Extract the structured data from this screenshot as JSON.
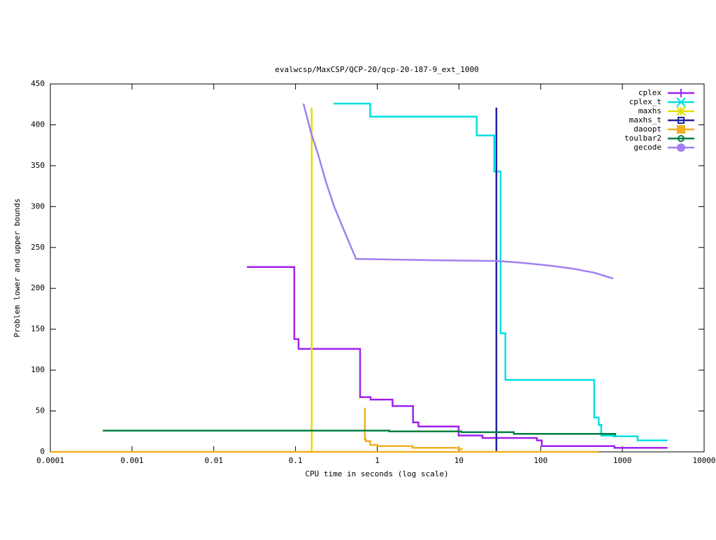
{
  "chart_data": {
    "type": "line",
    "title": "evalwcsp/MaxCSP/QCP-20/qcp-20-187-9_ext_1000",
    "x_label": "CPU time in seconds (log scale)",
    "y_label": "Problem lower and upper bounds",
    "xscale": "log",
    "xlim": [
      0.0001,
      10000
    ],
    "xticks": [
      0.0001,
      0.001,
      0.01,
      0.1,
      1,
      10,
      100,
      1000,
      10000
    ],
    "ylim": [
      0,
      450
    ],
    "yticks": [
      0,
      50,
      100,
      150,
      200,
      250,
      300,
      350,
      400,
      450
    ],
    "legend": "top-right",
    "series": [
      {
        "name": "cplex",
        "color": "#a020f0",
        "marker": "plus",
        "x": [
          0.0254,
          0.0966,
          0.0966,
          0.109,
          0.109,
          0.617,
          0.617,
          0.83,
          0.83,
          1.54,
          1.54,
          2.74,
          2.74,
          3.2,
          3.2,
          9.9,
          9.9,
          19.4,
          19.4,
          90,
          90,
          103,
          103,
          800,
          800,
          3570
        ],
        "values": [
          226,
          226,
          138,
          138,
          126,
          126,
          67,
          67,
          64,
          64,
          56,
          56,
          36,
          36,
          31,
          31,
          20,
          20,
          17,
          17,
          14,
          14,
          7,
          7,
          5,
          5
        ]
      },
      {
        "name": "cplex_t",
        "color": "#00e0e0",
        "marker": "cross",
        "x": [
          0.292,
          0.82,
          0.82,
          16.5,
          16.5,
          27,
          27,
          32.3,
          32.3,
          37,
          37,
          452,
          452,
          513,
          513,
          551,
          551,
          770,
          770,
          1535,
          1535,
          3570
        ],
        "values": [
          426,
          426,
          410,
          410,
          387,
          387,
          343,
          343,
          145,
          145,
          88,
          88,
          42,
          42,
          33,
          33,
          20,
          20,
          19,
          19,
          14,
          14
        ]
      },
      {
        "name": "maxhs",
        "color": "#e0e000",
        "marker": "star",
        "x": [
          0.158,
          0.158
        ],
        "values": [
          0,
          421
        ]
      },
      {
        "name": "maxhs_t",
        "color": "#2020a0",
        "marker": "square",
        "x": [
          28.7,
          28.7
        ],
        "values": [
          0,
          421
        ]
      },
      {
        "name": "daoopt",
        "color": "#f0b020",
        "marker": "filled-square",
        "x": [
          0.706,
          0.706,
          0.73,
          0.73,
          0.82,
          0.82,
          1,
          1,
          2.7,
          2.7,
          9.9,
          9.9,
          11.1,
          11.1,
          0.0001,
          510
        ],
        "values": [
          54,
          15,
          15,
          13,
          13,
          8.5,
          8.5,
          7,
          7,
          5,
          5,
          3.4,
          3.4,
          null,
          0,
          0
        ]
      },
      {
        "name": "toulbar2",
        "color": "#008040",
        "marker": "circle",
        "x": [
          0.000438,
          1.41,
          1.41,
          10.7,
          10.7,
          47,
          47,
          817,
          817
        ],
        "values": [
          26,
          26,
          25,
          25,
          24,
          24,
          22,
          22,
          20
        ]
      },
      {
        "name": "gecode",
        "color": "#a080f0",
        "marker": "filled-circle",
        "x": [
          0.125,
          0.155,
          0.189,
          0.236,
          0.297,
          0.377,
          0.55,
          4.7,
          30,
          63,
          138,
          250,
          457,
          770
        ],
        "values": [
          426,
          390,
          364,
          330,
          300,
          275,
          236,
          234.4,
          233.5,
          231,
          227.5,
          224,
          219,
          212
        ]
      }
    ]
  }
}
